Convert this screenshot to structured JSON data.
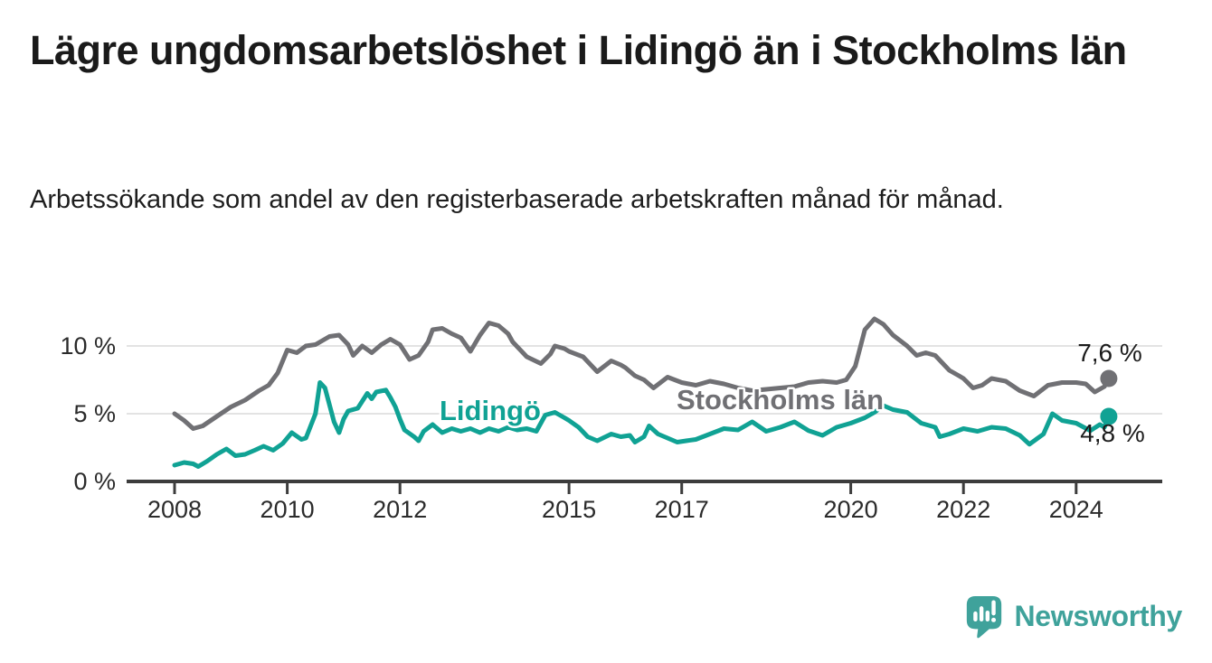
{
  "header": {
    "title": "Lägre ungdomsarbetslöshet i Lidingö än i Stockholms län",
    "subtitle": "Arbetssökande som andel av den registerbaserade arbetskraften månad för månad."
  },
  "chart_data": {
    "type": "line",
    "unit": "%",
    "grid": "horizontal-only",
    "legend_position": "inline-labels-on-lines",
    "x_axis": {
      "ticks": [
        "2008",
        "2010",
        "2012",
        "2015",
        "2017",
        "2020",
        "2022",
        "2024"
      ],
      "range": [
        2007.15,
        2025.55
      ]
    },
    "y_axis": {
      "ticks": [
        {
          "value": 0,
          "label": "0 %"
        },
        {
          "value": 5,
          "label": "5 %"
        },
        {
          "value": 10,
          "label": "10 %"
        }
      ],
      "gridlines": [
        5,
        10
      ],
      "range": [
        0,
        12.5
      ]
    },
    "series": [
      {
        "name": "Stockholms län",
        "color": "#707074",
        "end_label": "7,6 %",
        "end_value": 7.6,
        "points": [
          [
            2008.0,
            5.0
          ],
          [
            2008.17,
            4.5
          ],
          [
            2008.33,
            3.9
          ],
          [
            2008.5,
            4.1
          ],
          [
            2008.75,
            4.8
          ],
          [
            2009.0,
            5.5
          ],
          [
            2009.25,
            6.0
          ],
          [
            2009.5,
            6.7
          ],
          [
            2009.67,
            7.1
          ],
          [
            2009.83,
            8.0
          ],
          [
            2010.0,
            9.7
          ],
          [
            2010.17,
            9.5
          ],
          [
            2010.33,
            10.0
          ],
          [
            2010.5,
            10.1
          ],
          [
            2010.75,
            10.7
          ],
          [
            2010.92,
            10.8
          ],
          [
            2011.08,
            10.1
          ],
          [
            2011.17,
            9.3
          ],
          [
            2011.33,
            10.0
          ],
          [
            2011.5,
            9.5
          ],
          [
            2011.67,
            10.1
          ],
          [
            2011.83,
            10.5
          ],
          [
            2012.0,
            10.1
          ],
          [
            2012.17,
            9.0
          ],
          [
            2012.33,
            9.3
          ],
          [
            2012.5,
            10.3
          ],
          [
            2012.58,
            11.2
          ],
          [
            2012.75,
            11.3
          ],
          [
            2012.92,
            10.9
          ],
          [
            2013.08,
            10.6
          ],
          [
            2013.25,
            9.6
          ],
          [
            2013.42,
            10.8
          ],
          [
            2013.58,
            11.7
          ],
          [
            2013.75,
            11.5
          ],
          [
            2013.92,
            10.9
          ],
          [
            2014.0,
            10.3
          ],
          [
            2014.25,
            9.2
          ],
          [
            2014.5,
            8.7
          ],
          [
            2014.67,
            9.4
          ],
          [
            2014.75,
            10.0
          ],
          [
            2014.92,
            9.8
          ],
          [
            2015.0,
            9.6
          ],
          [
            2015.25,
            9.2
          ],
          [
            2015.5,
            8.1
          ],
          [
            2015.75,
            8.9
          ],
          [
            2015.92,
            8.6
          ],
          [
            2016.0,
            8.4
          ],
          [
            2016.17,
            7.8
          ],
          [
            2016.33,
            7.5
          ],
          [
            2016.5,
            6.9
          ],
          [
            2016.75,
            7.7
          ],
          [
            2017.0,
            7.3
          ],
          [
            2017.25,
            7.1
          ],
          [
            2017.5,
            7.4
          ],
          [
            2017.75,
            7.2
          ],
          [
            2018.0,
            6.9
          ],
          [
            2018.25,
            6.7
          ],
          [
            2018.5,
            6.8
          ],
          [
            2018.75,
            6.9
          ],
          [
            2019.0,
            7.0
          ],
          [
            2019.25,
            7.3
          ],
          [
            2019.5,
            7.4
          ],
          [
            2019.75,
            7.3
          ],
          [
            2019.92,
            7.5
          ],
          [
            2020.08,
            8.5
          ],
          [
            2020.25,
            11.2
          ],
          [
            2020.42,
            12.0
          ],
          [
            2020.58,
            11.6
          ],
          [
            2020.75,
            10.8
          ],
          [
            2021.0,
            10.0
          ],
          [
            2021.17,
            9.3
          ],
          [
            2021.33,
            9.5
          ],
          [
            2021.5,
            9.3
          ],
          [
            2021.75,
            8.2
          ],
          [
            2021.92,
            7.8
          ],
          [
            2022.0,
            7.6
          ],
          [
            2022.17,
            6.9
          ],
          [
            2022.33,
            7.1
          ],
          [
            2022.5,
            7.6
          ],
          [
            2022.75,
            7.4
          ],
          [
            2023.0,
            6.7
          ],
          [
            2023.25,
            6.3
          ],
          [
            2023.5,
            7.1
          ],
          [
            2023.75,
            7.3
          ],
          [
            2024.0,
            7.3
          ],
          [
            2024.17,
            7.2
          ],
          [
            2024.33,
            6.6
          ],
          [
            2024.5,
            7.0
          ],
          [
            2024.58,
            7.6
          ]
        ]
      },
      {
        "name": "Lidingö",
        "color": "#10A294",
        "end_label": "4,8 %",
        "end_value": 4.8,
        "points": [
          [
            2008.0,
            1.2
          ],
          [
            2008.17,
            1.4
          ],
          [
            2008.33,
            1.3
          ],
          [
            2008.42,
            1.1
          ],
          [
            2008.58,
            1.5
          ],
          [
            2008.75,
            2.0
          ],
          [
            2008.92,
            2.4
          ],
          [
            2009.08,
            1.9
          ],
          [
            2009.25,
            2.0
          ],
          [
            2009.42,
            2.3
          ],
          [
            2009.58,
            2.6
          ],
          [
            2009.75,
            2.3
          ],
          [
            2009.92,
            2.8
          ],
          [
            2010.08,
            3.6
          ],
          [
            2010.25,
            3.1
          ],
          [
            2010.33,
            3.2
          ],
          [
            2010.5,
            5.0
          ],
          [
            2010.58,
            7.3
          ],
          [
            2010.67,
            6.9
          ],
          [
            2010.83,
            4.4
          ],
          [
            2010.92,
            3.6
          ],
          [
            2011.0,
            4.6
          ],
          [
            2011.08,
            5.2
          ],
          [
            2011.25,
            5.4
          ],
          [
            2011.42,
            6.5
          ],
          [
            2011.5,
            6.1
          ],
          [
            2011.58,
            6.6
          ],
          [
            2011.75,
            6.75
          ],
          [
            2011.83,
            6.2
          ],
          [
            2011.92,
            5.5
          ],
          [
            2012.0,
            4.6
          ],
          [
            2012.08,
            3.8
          ],
          [
            2012.25,
            3.3
          ],
          [
            2012.33,
            3.0
          ],
          [
            2012.42,
            3.7
          ],
          [
            2012.58,
            4.2
          ],
          [
            2012.75,
            3.6
          ],
          [
            2012.92,
            3.9
          ],
          [
            2013.08,
            3.7
          ],
          [
            2013.25,
            3.9
          ],
          [
            2013.42,
            3.6
          ],
          [
            2013.58,
            3.9
          ],
          [
            2013.75,
            3.7
          ],
          [
            2013.92,
            4.0
          ],
          [
            2014.08,
            3.8
          ],
          [
            2014.25,
            3.9
          ],
          [
            2014.42,
            3.7
          ],
          [
            2014.58,
            4.9
          ],
          [
            2014.75,
            5.1
          ],
          [
            2014.92,
            4.7
          ],
          [
            2015.0,
            4.5
          ],
          [
            2015.17,
            4.0
          ],
          [
            2015.33,
            3.3
          ],
          [
            2015.5,
            3.0
          ],
          [
            2015.75,
            3.5
          ],
          [
            2015.92,
            3.3
          ],
          [
            2016.08,
            3.4
          ],
          [
            2016.17,
            2.9
          ],
          [
            2016.33,
            3.3
          ],
          [
            2016.42,
            4.1
          ],
          [
            2016.58,
            3.5
          ],
          [
            2016.75,
            3.2
          ],
          [
            2016.92,
            2.9
          ],
          [
            2017.08,
            3.0
          ],
          [
            2017.25,
            3.1
          ],
          [
            2017.5,
            3.5
          ],
          [
            2017.75,
            3.9
          ],
          [
            2018.0,
            3.8
          ],
          [
            2018.25,
            4.4
          ],
          [
            2018.5,
            3.7
          ],
          [
            2018.75,
            4.0
          ],
          [
            2019.0,
            4.4
          ],
          [
            2019.25,
            3.75
          ],
          [
            2019.5,
            3.4
          ],
          [
            2019.75,
            4.0
          ],
          [
            2020.0,
            4.3
          ],
          [
            2020.25,
            4.7
          ],
          [
            2020.42,
            5.1
          ],
          [
            2020.58,
            5.6
          ],
          [
            2020.75,
            5.3
          ],
          [
            2021.0,
            5.1
          ],
          [
            2021.25,
            4.3
          ],
          [
            2021.5,
            4.0
          ],
          [
            2021.58,
            3.3
          ],
          [
            2021.75,
            3.5
          ],
          [
            2022.0,
            3.9
          ],
          [
            2022.25,
            3.7
          ],
          [
            2022.5,
            4.0
          ],
          [
            2022.75,
            3.9
          ],
          [
            2023.0,
            3.4
          ],
          [
            2023.17,
            2.75
          ],
          [
            2023.42,
            3.5
          ],
          [
            2023.58,
            5.0
          ],
          [
            2023.75,
            4.5
          ],
          [
            2024.0,
            4.3
          ],
          [
            2024.25,
            3.75
          ],
          [
            2024.42,
            4.2
          ],
          [
            2024.5,
            4.0
          ],
          [
            2024.58,
            4.8
          ]
        ]
      }
    ],
    "style": {
      "axis_color": "#3C3C3C",
      "gridline_color": "#DADADA",
      "tick_label_color": "#2b2b2b"
    }
  },
  "branding": {
    "logo_text": "Newsworthy",
    "logo_color": "#3FA29B",
    "logo_icon": "bar-chart-speech-bubble-icon"
  }
}
